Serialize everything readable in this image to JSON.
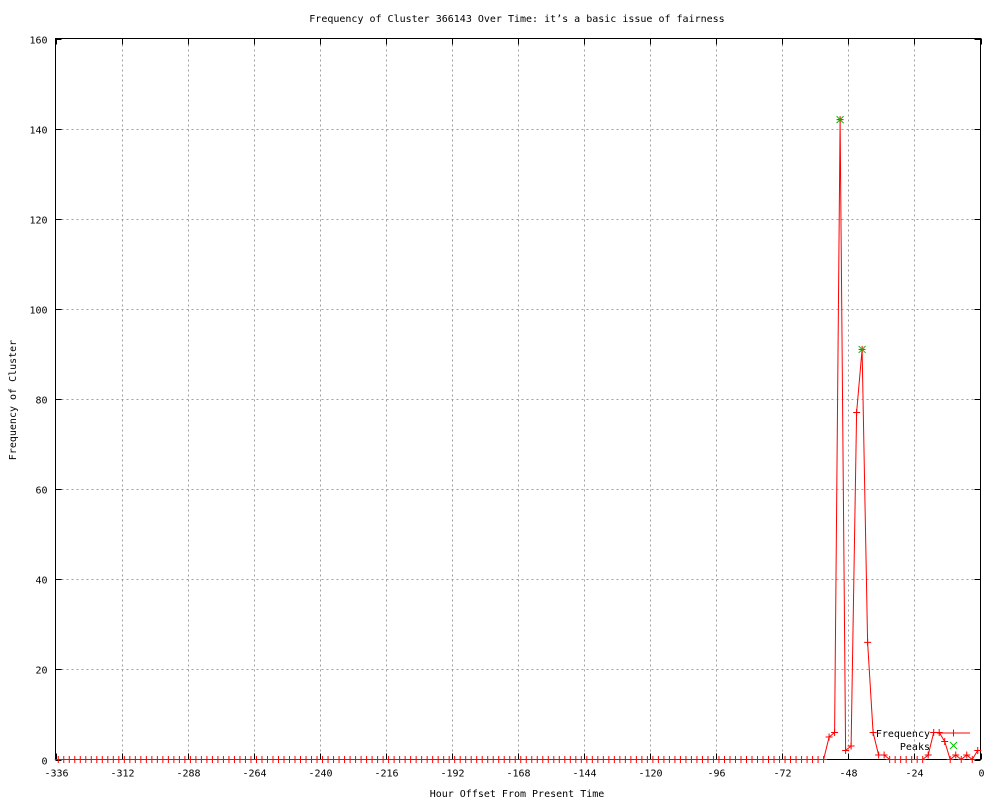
{
  "chart_data": {
    "type": "line",
    "title": "Frequency of Cluster 366143 Over Time: it’s a basic issue of fairness",
    "xlabel": "Hour Offset From Present Time",
    "ylabel": "Frequency of Cluster",
    "xlim": [
      -336,
      0
    ],
    "ylim": [
      0,
      160
    ],
    "xticks": [
      -336,
      -312,
      -288,
      -264,
      -240,
      -216,
      -192,
      -168,
      -144,
      -120,
      -96,
      -72,
      -48,
      -24,
      0
    ],
    "yticks": [
      0,
      20,
      40,
      60,
      80,
      100,
      120,
      140,
      160
    ],
    "grid": true,
    "legend_placement": "bottom-right",
    "series": [
      {
        "name": "Frequency",
        "color": "#ff0000",
        "style": "linespoints-plus",
        "x": [
          -335,
          -333,
          -331,
          -329,
          -327,
          -325,
          -323,
          -321,
          -319,
          -317,
          -315,
          -313,
          -311,
          -309,
          -307,
          -305,
          -303,
          -301,
          -299,
          -297,
          -295,
          -293,
          -291,
          -289,
          -287,
          -285,
          -283,
          -281,
          -279,
          -277,
          -275,
          -273,
          -271,
          -269,
          -267,
          -265,
          -263,
          -261,
          -259,
          -257,
          -255,
          -253,
          -251,
          -249,
          -247,
          -245,
          -243,
          -241,
          -239,
          -237,
          -235,
          -233,
          -231,
          -229,
          -227,
          -225,
          -223,
          -221,
          -219,
          -217,
          -215,
          -213,
          -211,
          -209,
          -207,
          -205,
          -203,
          -201,
          -199,
          -197,
          -195,
          -193,
          -191,
          -189,
          -187,
          -185,
          -183,
          -181,
          -179,
          -177,
          -175,
          -173,
          -171,
          -169,
          -167,
          -165,
          -163,
          -161,
          -159,
          -157,
          -155,
          -153,
          -151,
          -149,
          -147,
          -145,
          -143,
          -141,
          -139,
          -137,
          -135,
          -133,
          -131,
          -129,
          -127,
          -125,
          -123,
          -121,
          -119,
          -117,
          -115,
          -113,
          -111,
          -109,
          -107,
          -105,
          -103,
          -101,
          -99,
          -97,
          -95,
          -93,
          -91,
          -89,
          -87,
          -85,
          -83,
          -81,
          -79,
          -77,
          -75,
          -73,
          -71,
          -69,
          -67,
          -65,
          -63,
          -61,
          -59,
          -57,
          -55,
          -53,
          -51,
          -49,
          -47,
          -45,
          -43,
          -41,
          -39,
          -37,
          -35,
          -33,
          -31,
          -29,
          -27,
          -25,
          -23,
          -21,
          -19,
          -17,
          -15,
          -13,
          -11,
          -9,
          -7,
          -5,
          -3,
          -1
        ],
        "y": [
          0,
          0,
          0,
          0,
          0,
          0,
          0,
          0,
          0,
          0,
          0,
          0,
          0,
          0,
          0,
          0,
          0,
          0,
          0,
          0,
          0,
          0,
          0,
          0,
          0,
          0,
          0,
          0,
          0,
          0,
          0,
          0,
          0,
          0,
          0,
          0,
          0,
          0,
          0,
          0,
          0,
          0,
          0,
          0,
          0,
          0,
          0,
          0,
          0,
          0,
          0,
          0,
          0,
          0,
          0,
          0,
          0,
          0,
          0,
          0,
          0,
          0,
          0,
          0,
          0,
          0,
          0,
          0,
          0,
          0,
          0,
          0,
          0,
          0,
          0,
          0,
          0,
          0,
          0,
          0,
          0,
          0,
          0,
          0,
          0,
          0,
          0,
          0,
          0,
          0,
          0,
          0,
          0,
          0,
          0,
          0,
          0,
          0,
          0,
          0,
          0,
          0,
          0,
          0,
          0,
          0,
          0,
          0,
          0,
          0,
          0,
          0,
          0,
          0,
          0,
          0,
          0,
          0,
          0,
          0,
          0,
          0,
          0,
          0,
          0,
          0,
          0,
          0,
          0,
          0,
          0,
          0,
          0,
          0,
          0,
          0,
          0,
          0,
          0,
          0,
          5,
          6,
          142,
          2,
          3,
          77,
          91,
          26,
          6,
          1,
          1,
          0,
          0,
          0,
          0,
          0,
          0,
          0,
          1,
          6,
          6,
          4,
          0,
          1,
          0,
          1,
          0,
          2
        ]
      },
      {
        "name": "Peaks",
        "color": "#00c000",
        "style": "points-x",
        "x": [
          -51,
          -43
        ],
        "y": [
          142,
          91
        ]
      }
    ]
  }
}
